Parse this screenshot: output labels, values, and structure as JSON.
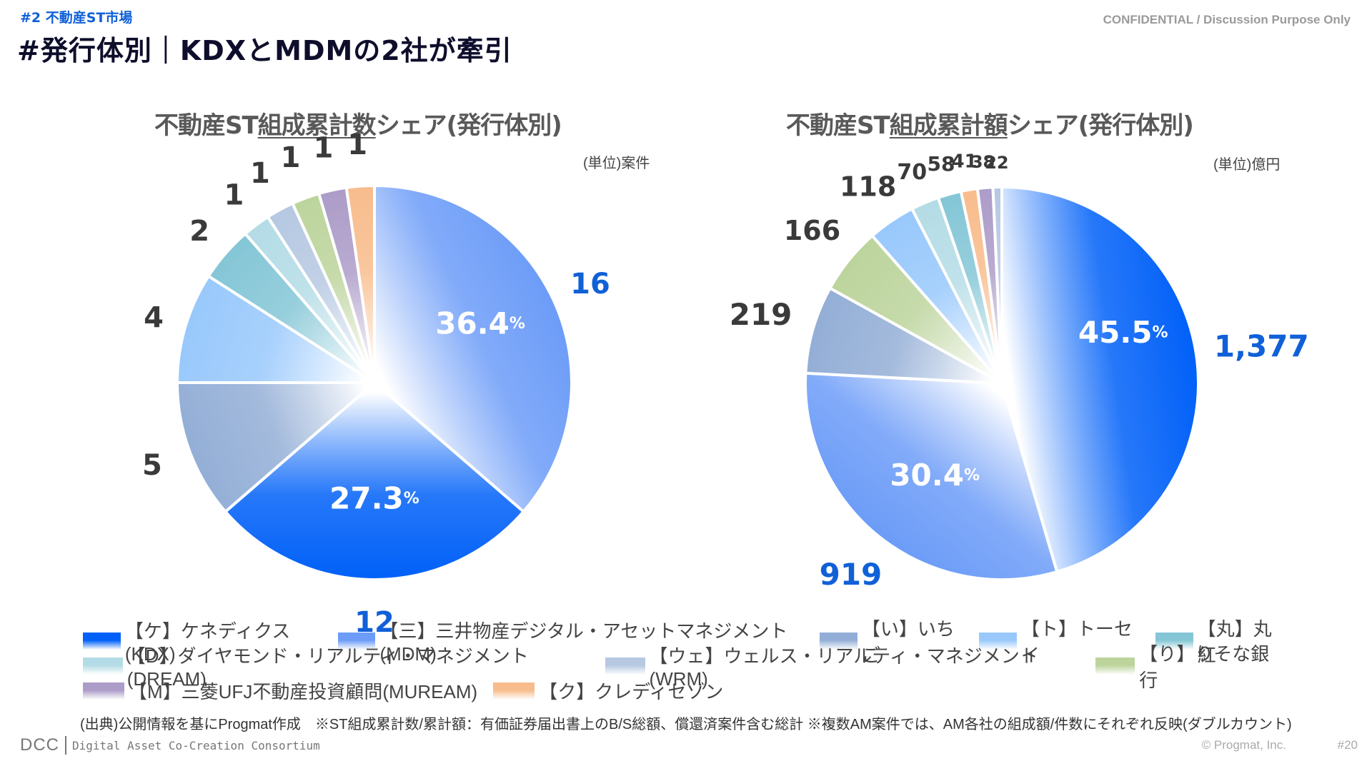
{
  "header": {
    "section_tag": "#2  不動産ST市場",
    "title": "#発行体別｜KDXとMDMの2社が牽引",
    "confidential": "CONFIDENTIAL / Discussion Purpose Only"
  },
  "colors": {
    "KDX": "#0060f8",
    "MDM": "#6c9cf8",
    "ICHIGO": "#93aed6",
    "TOSEI": "#98c8fc",
    "MARUBENI": "#84c6d6",
    "DREAM": "#b4dce6",
    "WRM": "#b6c8e2",
    "RESONA": "#bcd49c",
    "MUREAM": "#ac9cc8",
    "CREDSAISON": "#f8bc8c",
    "label_highlight": "#1060d8",
    "label_dark": "#3a3a3a"
  },
  "legend": {
    "rows": [
      [
        {
          "key": "KDX",
          "label": "【ケ】ケネディクス(KDX)"
        },
        {
          "key": "MDM",
          "label": "【三】三井物産デジタル・アセットマネジメント(MDM)"
        },
        {
          "key": "ICHIGO",
          "label": "【い】いちご"
        },
        {
          "key": "TOSEI",
          "label": "【ト】トーセイ"
        },
        {
          "key": "MARUBENI",
          "label": "【丸】丸紅"
        }
      ],
      [
        {
          "key": "DREAM",
          "label": "【D】ダイヤモンド・リアルティ・マネジメント(DREAM)"
        },
        {
          "key": "WRM",
          "label": "【ウェ】ウェルス・リアルティ・マネジメント(WRM)"
        },
        {
          "key": "RESONA",
          "label": "【り】りそな銀行"
        }
      ],
      [
        {
          "key": "MUREAM",
          "label": "【M】三菱UFJ不動産投資顧問(MUREAM)"
        },
        {
          "key": "CREDSAISON",
          "label": "【ク】クレディセゾン"
        }
      ]
    ]
  },
  "footer": {
    "source": "(出典)公開情報を基にProgmat作成　※ST組成累計数/累計額：有価証券届出書上のB/S総額、償還済案件含む総計 ※複数AM案件では、AM各社の組成額/件数にそれぞれ反映(ダブルカウント)",
    "logo_short": "DCC",
    "logo_full": "Digital Asset Co-Creation Consortium",
    "copyright": "© Progmat, Inc.",
    "page": "#20"
  },
  "chart_data": [
    {
      "type": "pie",
      "title_pre": "不動産ST",
      "title_underlined": "組成累計数",
      "title_post": "シェア(発行体別)",
      "unit": "(単位)案件",
      "start": "top",
      "direction": "clockwise",
      "slices": [
        {
          "key": "MDM",
          "name": "三井物産デジタル・アセットマネジメント(MDM)",
          "value": 16,
          "pct": "36.4",
          "highlight": true
        },
        {
          "key": "KDX",
          "name": "ケネディクス(KDX)",
          "value": 12,
          "pct": "27.3",
          "highlight": true
        },
        {
          "key": "ICHIGO",
          "name": "いちご",
          "value": 5
        },
        {
          "key": "TOSEI",
          "name": "トーセイ",
          "value": 4
        },
        {
          "key": "MARUBENI",
          "name": "丸紅",
          "value": 2
        },
        {
          "key": "DREAM",
          "name": "ダイヤモンド・リアルティ・マネジメント(DREAM)",
          "value": 1
        },
        {
          "key": "WRM",
          "name": "ウェルス・リアルティ・マネジメント(WRM)",
          "value": 1
        },
        {
          "key": "RESONA",
          "name": "りそな銀行",
          "value": 1
        },
        {
          "key": "MUREAM",
          "name": "三菱UFJ不動産投資顧問(MUREAM)",
          "value": 1
        },
        {
          "key": "CREDSAISON",
          "name": "クレディセゾン",
          "value": 1
        }
      ]
    },
    {
      "type": "pie",
      "title_pre": "不動産ST",
      "title_underlined": "組成累計額",
      "title_post": "シェア(発行体別)",
      "unit": "(単位)億円",
      "start": "top",
      "direction": "clockwise",
      "slices": [
        {
          "key": "KDX",
          "name": "ケネディクス(KDX)",
          "value": 1377,
          "label": "1,377",
          "pct": "45.5",
          "highlight": true
        },
        {
          "key": "MDM",
          "name": "三井物産デジタル・アセットマネジメント(MDM)",
          "value": 919,
          "label": "919",
          "pct": "30.4",
          "highlight": true
        },
        {
          "key": "ICHIGO",
          "name": "いちご",
          "value": 219,
          "label": "219"
        },
        {
          "key": "RESONA",
          "name": "りそな銀行",
          "value": 166,
          "label": "166"
        },
        {
          "key": "TOSEI",
          "name": "トーセイ",
          "value": 118,
          "label": "118"
        },
        {
          "key": "DREAM",
          "name": "ダイヤモンド・リアルティ・マネジメント(DREAM)",
          "value": 70,
          "label": "70"
        },
        {
          "key": "MARUBENI",
          "name": "丸紅",
          "value": 58,
          "label": "58"
        },
        {
          "key": "CREDSAISON",
          "name": "クレディセゾン",
          "value": 41,
          "label": "41"
        },
        {
          "key": "MUREAM",
          "name": "三菱UFJ不動産投資顧問(MUREAM)",
          "value": 38,
          "label": "38"
        },
        {
          "key": "WRM",
          "name": "ウェルス・リアルティ・マネジメント(WRM)",
          "value": 22,
          "label": "22"
        }
      ]
    }
  ]
}
